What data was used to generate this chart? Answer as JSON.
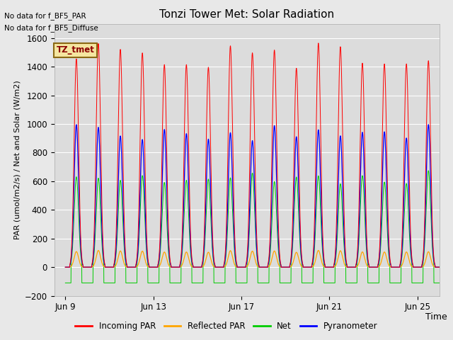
{
  "title": "Tonzi Tower Met: Solar Radiation",
  "ylabel": "PAR (umol/m2/s) / Net and Solar (W/m2)",
  "xlabel": "Time",
  "ylim": [
    -200,
    1700
  ],
  "yticks": [
    -200,
    0,
    200,
    400,
    600,
    800,
    1000,
    1200,
    1400,
    1600
  ],
  "bg_color": "#e8e8e8",
  "plot_bg_color": "#dcdcdc",
  "text_no_data1": "No data for f_BF5_PAR",
  "text_no_data2": "No data for f_BF5_Diffuse",
  "legend_label": "TZ_tmet",
  "legend_bg": "#f5e6a0",
  "legend_border": "#8b6914",
  "xtick_labels": [
    "Jun 9",
    "Jun 13",
    "Jun 17",
    "Jun 21",
    "Jun 25"
  ],
  "n_days": 17,
  "colors": {
    "incoming_par": "#ff0000",
    "reflected_par": "#ffa500",
    "net": "#00cc00",
    "pyranometer": "#0000ff"
  },
  "peaks": {
    "incoming_par": 1540,
    "reflected_par": 115,
    "net": 680,
    "pyranometer": 1000
  },
  "net_min": -110,
  "legend_entries": [
    {
      "label": "Incoming PAR",
      "color": "#ff0000"
    },
    {
      "label": "Reflected PAR",
      "color": "#ffa500"
    },
    {
      "label": "Net",
      "color": "#00cc00"
    },
    {
      "label": "Pyranometer",
      "color": "#0000ff"
    }
  ]
}
